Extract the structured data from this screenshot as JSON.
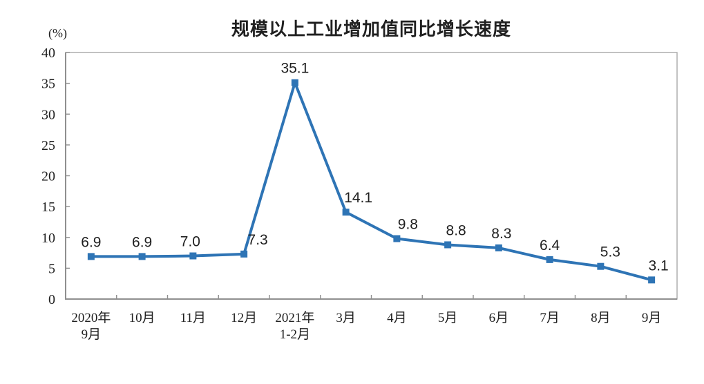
{
  "chart_data": {
    "type": "line",
    "title": "规模以上工业增加值同比增长速度",
    "y_unit_label": "(%)",
    "categories": [
      [
        "2020年",
        "9月"
      ],
      [
        "10月"
      ],
      [
        "11月"
      ],
      [
        "12月"
      ],
      [
        "2021年",
        "1-2月"
      ],
      [
        "3月"
      ],
      [
        "4月"
      ],
      [
        "5月"
      ],
      [
        "6月"
      ],
      [
        "7月"
      ],
      [
        "8月"
      ],
      [
        "9月"
      ]
    ],
    "values": [
      6.9,
      6.9,
      7.0,
      7.3,
      35.1,
      14.1,
      9.8,
      8.8,
      8.3,
      6.4,
      5.3,
      3.1
    ],
    "data_labels": [
      "6.9",
      "6.9",
      "7.0",
      "7.3",
      "35.1",
      "14.1",
      "9.8",
      "8.8",
      "8.3",
      "6.4",
      "5.3",
      "3.1"
    ],
    "ylim": [
      0,
      40
    ],
    "y_tick_step": 5,
    "y_ticks": [
      0,
      5,
      10,
      15,
      20,
      25,
      30,
      35,
      40
    ],
    "line_color": "#2e74b5",
    "marker": "square",
    "grid": false,
    "legend": "none",
    "text_color": "#1f1f1f",
    "axis_border_color": "#a8a8a8",
    "axis_line_color": "#8f8f8f"
  }
}
